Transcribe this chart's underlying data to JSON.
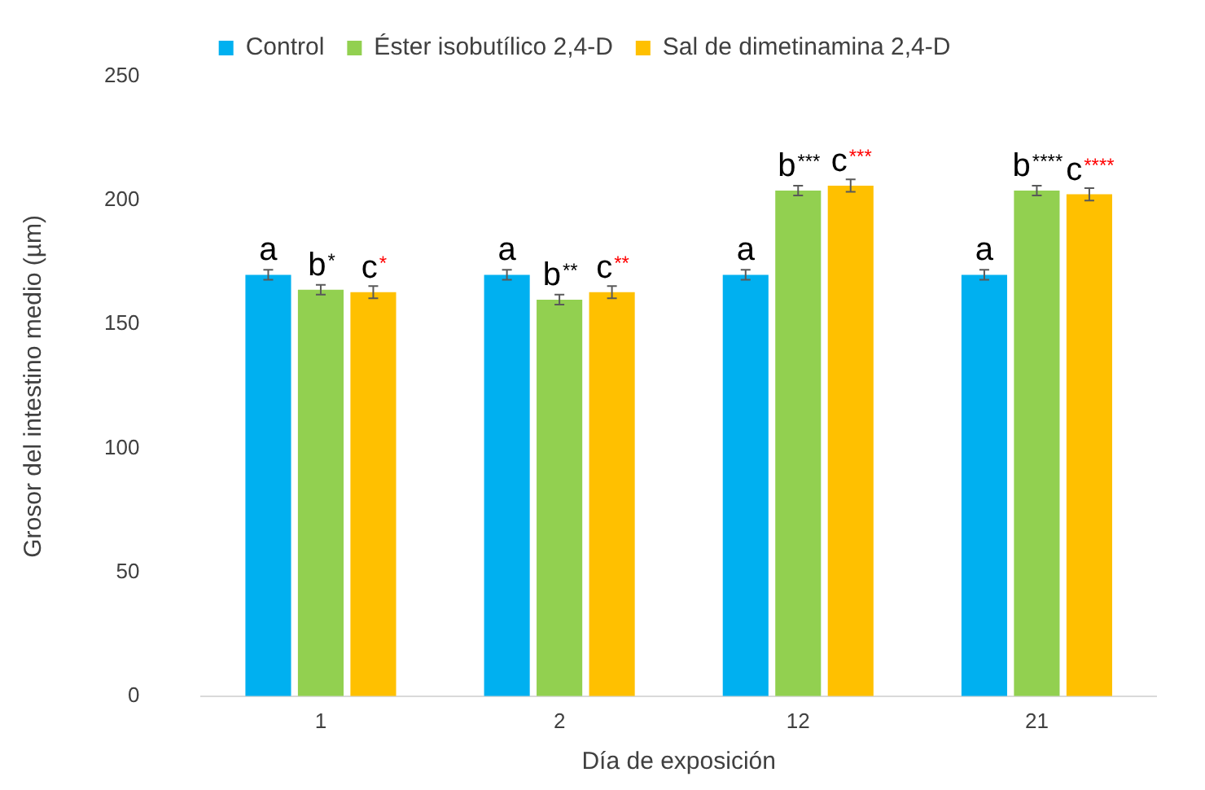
{
  "chart_data": {
    "type": "bar",
    "xlabel": "Día de exposición",
    "ylabel": "Grosor del intestino medio (µm)",
    "categories": [
      "1",
      "2",
      "12",
      "21"
    ],
    "series": [
      {
        "name": "Control",
        "color": "#00b0f0",
        "values": [
          170,
          170,
          170,
          170
        ],
        "errors": [
          2,
          2,
          2,
          2
        ]
      },
      {
        "name": "Éster isobutílico 2,4-D",
        "color": "#92d050",
        "values": [
          164,
          160,
          204,
          204
        ],
        "errors": [
          2,
          2,
          2,
          2
        ]
      },
      {
        "name": "Sal de dimetinamina 2,4-D",
        "color": "#ffc000",
        "values": [
          163,
          163,
          206,
          202.5
        ],
        "errors": [
          2.5,
          2.5,
          2.5,
          2.5
        ]
      }
    ],
    "ylim": [
      0,
      250
    ],
    "yticks": [
      0,
      50,
      100,
      150,
      200,
      250
    ],
    "grid": false,
    "legend": "top",
    "annotations": [
      "a",
      {
        "text": "b*",
        "x": "1",
        "y": 164
      },
      {
        "text": "c*",
        "x": "1",
        "y": 163
      },
      "a",
      {
        "text": "b**",
        "x": "2",
        "y": 160
      },
      {
        "text": "c**",
        "x": "2",
        "y": 163
      },
      "a",
      {
        "text": "b***",
        "x": "12",
        "y": 204
      },
      {
        "text": "c***",
        "x": "12",
        "y": 206
      },
      "a",
      {
        "text": "b****",
        "x": "21",
        "y": 204
      },
      {
        "text": "c****",
        "x": "21",
        "y": 202.5
      }
    ]
  }
}
